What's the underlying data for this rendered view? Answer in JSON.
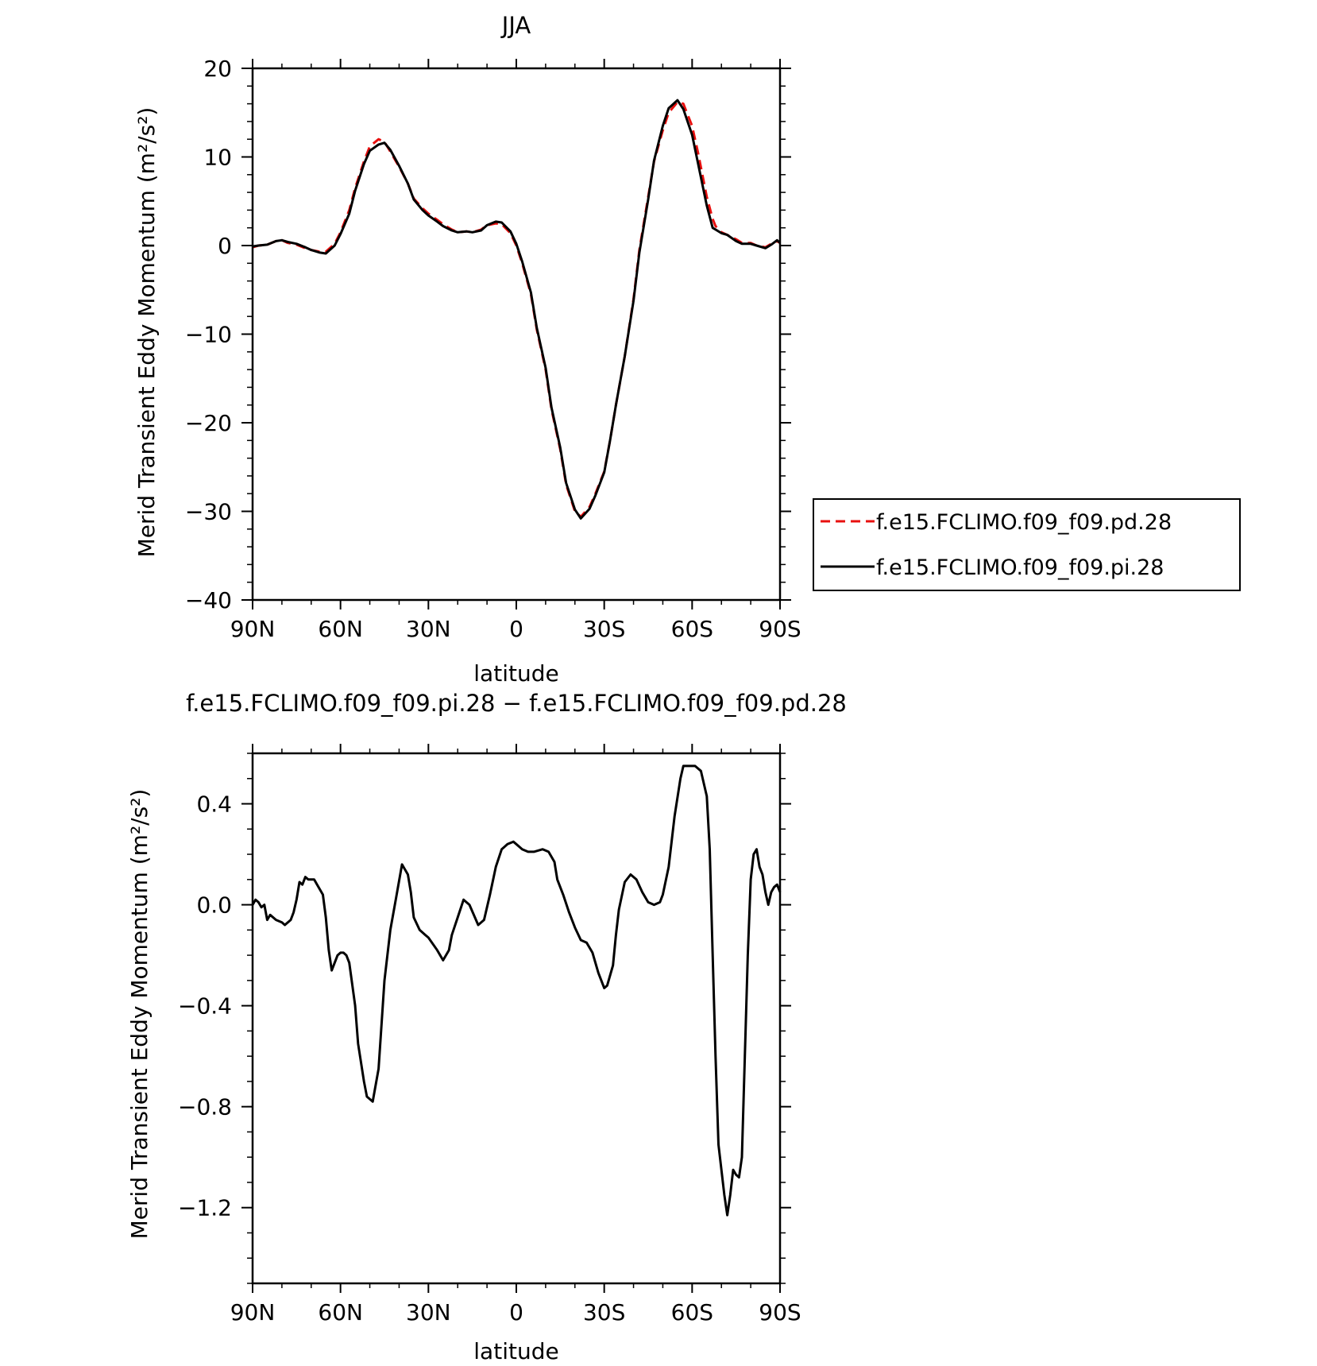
{
  "chart_data": [
    {
      "type": "line",
      "title": "JJA",
      "xlabel": "latitude",
      "ylabel": "Merid Transient Eddy Momentum (m²/s²)",
      "xlim": [
        90,
        -90
      ],
      "ylim": [
        -40,
        20
      ],
      "xticks": [
        90,
        60,
        30,
        0,
        -30,
        -60,
        -90
      ],
      "xtick_labels": [
        "90N",
        "60N",
        "30N",
        "0",
        "30S",
        "60S",
        "90S"
      ],
      "yticks": [
        20,
        10,
        0,
        -10,
        -20,
        -30,
        -40
      ],
      "ytick_labels": [
        "20",
        "10",
        "0",
        "−10",
        "−20",
        "−30",
        "−40"
      ],
      "legend_position": "right",
      "series": [
        {
          "name": "f.e15.FCLIMO.f09_f09.pd.28",
          "color": "#e8100f",
          "dash": "dashed",
          "x": [
            90,
            88,
            85,
            82,
            80,
            78,
            75,
            72,
            70,
            67,
            65,
            62,
            60,
            57,
            55,
            52,
            50,
            47,
            45,
            43,
            40,
            37,
            35,
            32,
            30,
            27,
            25,
            22,
            20,
            17,
            15,
            12,
            10,
            7,
            5,
            2,
            0,
            -2,
            -5,
            -7,
            -10,
            -12,
            -15,
            -17,
            -20,
            -22,
            -25,
            -27,
            -30,
            -32,
            -34,
            -37,
            -40,
            -42,
            -45,
            -47,
            -50,
            -52,
            -55,
            -57,
            -60,
            -62,
            -65,
            -67,
            -68,
            -70,
            -72,
            -75,
            -77,
            -80,
            -82,
            -85,
            -87,
            -89,
            -90
          ],
          "y": [
            -0.2,
            0,
            0.1,
            0.5,
            0.6,
            0.3,
            0.1,
            -0.3,
            -0.5,
            -0.7,
            -0.7,
            0.2,
            1.5,
            4,
            6.5,
            9.5,
            11.2,
            12,
            11.7,
            10.6,
            8.9,
            7,
            5.3,
            4.2,
            3.6,
            2.9,
            2.4,
            1.8,
            1.5,
            1.6,
            1.5,
            1.8,
            2.3,
            2.5,
            2.4,
            1.4,
            0,
            -2,
            -5.5,
            -9.5,
            -14,
            -18.5,
            -23,
            -27,
            -30,
            -30.6,
            -29.5,
            -28,
            -25.5,
            -22,
            -18,
            -12.5,
            -6,
            -0.5,
            5.5,
            9.5,
            13,
            15,
            16.2,
            16,
            13.5,
            10.5,
            5.5,
            3,
            2.2,
            1.5,
            1.2,
            0.7,
            0.3,
            0.3,
            0,
            -0.2,
            0.2,
            0.5,
            0.3
          ]
        },
        {
          "name": "f.e15.FCLIMO.f09_f09.pi.28",
          "color": "#000000",
          "dash": "solid",
          "x": [
            90,
            88,
            85,
            82,
            80,
            78,
            75,
            72,
            70,
            67,
            65,
            62,
            60,
            57,
            55,
            52,
            50,
            47,
            45,
            43,
            40,
            37,
            35,
            32,
            30,
            27,
            25,
            22,
            20,
            17,
            15,
            12,
            10,
            7,
            5,
            2,
            0,
            -2,
            -5,
            -7,
            -10,
            -12,
            -15,
            -17,
            -20,
            -22,
            -25,
            -27,
            -30,
            -32,
            -34,
            -37,
            -40,
            -42,
            -45,
            -47,
            -50,
            -52,
            -55,
            -57,
            -60,
            -62,
            -65,
            -67,
            -68,
            -70,
            -72,
            -75,
            -77,
            -80,
            -82,
            -85,
            -87,
            -89,
            -90
          ],
          "y": [
            -0.1,
            0,
            0.1,
            0.5,
            0.6,
            0.4,
            0.2,
            -0.2,
            -0.5,
            -0.8,
            -0.9,
            0,
            1.3,
            3.6,
            6.2,
            9.2,
            10.7,
            11.4,
            11.6,
            10.8,
            9,
            7,
            5.2,
            4,
            3.4,
            2.7,
            2.2,
            1.7,
            1.5,
            1.6,
            1.5,
            1.7,
            2.3,
            2.7,
            2.6,
            1.6,
            0.2,
            -1.8,
            -5.3,
            -9.3,
            -13.8,
            -18.3,
            -22.8,
            -26.8,
            -29.8,
            -30.8,
            -29.7,
            -28.2,
            -25.6,
            -22,
            -18,
            -12.5,
            -6.2,
            -0.8,
            5.2,
            9.6,
            13.5,
            15.5,
            16.4,
            15.4,
            12.5,
            9.3,
            4.5,
            2,
            1.8,
            1.4,
            1.2,
            0.5,
            0.2,
            0.2,
            0,
            -0.3,
            0.1,
            0.6,
            0.3
          ]
        }
      ]
    },
    {
      "type": "line",
      "title": "f.e15.FCLIMO.f09_f09.pi.28 − f.e15.FCLIMO.f09_f09.pd.28",
      "xlabel": "latitude",
      "ylabel": "Merid Transient Eddy Momentum (m²/s²)",
      "xlim": [
        90,
        -90
      ],
      "ylim": [
        -1.5,
        0.6
      ],
      "xticks": [
        90,
        60,
        30,
        0,
        -30,
        -60,
        -90
      ],
      "xtick_labels": [
        "90N",
        "60N",
        "30N",
        "0",
        "30S",
        "60S",
        "90S"
      ],
      "yticks": [
        0.4,
        0.0,
        -0.4,
        -0.8,
        -1.2
      ],
      "ytick_labels": [
        "0.4",
        "0.0",
        "−0.4",
        "−0.8",
        "−1.2"
      ],
      "series": [
        {
          "color": "#000000",
          "dash": "solid",
          "x": [
            90,
            89,
            88,
            87,
            86,
            85,
            84,
            82,
            80,
            79,
            77,
            76,
            75,
            74,
            73,
            72,
            71,
            69,
            68,
            66,
            65,
            64,
            63,
            61,
            60,
            59,
            58,
            57,
            55,
            54,
            52,
            51,
            49,
            47,
            45,
            43,
            41,
            39,
            37,
            36,
            35,
            33,
            31,
            30,
            27,
            25,
            23,
            22,
            20,
            18,
            16,
            13,
            11,
            9,
            7,
            5,
            3,
            1,
            0,
            -2,
            -4,
            -6,
            -9,
            -11,
            -13,
            -14,
            -16,
            -18,
            -20,
            -22,
            -24,
            -26,
            -28,
            -30,
            -31,
            -33,
            -34,
            -35,
            -37,
            -39,
            -41,
            -43,
            -45,
            -47,
            -49,
            -50,
            -52,
            -54,
            -56,
            -57,
            -59,
            -60,
            -61,
            -63,
            -65,
            -66,
            -67,
            -68,
            -69,
            -71,
            -72,
            -73,
            -74,
            -75,
            -76,
            -77,
            -78,
            -79,
            -80,
            -81,
            -82,
            -83,
            -84,
            -85,
            -86,
            -87,
            -88,
            -89,
            -90
          ],
          "y": [
            0,
            0.02,
            0.01,
            -0.01,
            0,
            -0.06,
            -0.04,
            -0.06,
            -0.07,
            -0.08,
            -0.06,
            -0.03,
            0.02,
            0.09,
            0.08,
            0.11,
            0.1,
            0.1,
            0.08,
            0.04,
            -0.05,
            -0.18,
            -0.26,
            -0.2,
            -0.19,
            -0.19,
            -0.2,
            -0.23,
            -0.4,
            -0.55,
            -0.7,
            -0.76,
            -0.78,
            -0.65,
            -0.3,
            -0.1,
            0.03,
            0.16,
            0.12,
            0.05,
            -0.05,
            -0.1,
            -0.12,
            -0.13,
            -0.18,
            -0.22,
            -0.18,
            -0.12,
            -0.05,
            0.02,
            0,
            -0.08,
            -0.06,
            0.04,
            0.15,
            0.22,
            0.24,
            0.25,
            0.24,
            0.22,
            0.21,
            0.21,
            0.22,
            0.21,
            0.17,
            0.1,
            0.04,
            -0.03,
            -0.09,
            -0.14,
            -0.15,
            -0.19,
            -0.27,
            -0.33,
            -0.32,
            -0.24,
            -0.12,
            -0.02,
            0.09,
            0.12,
            0.1,
            0.05,
            0.01,
            0,
            0.01,
            0.04,
            0.15,
            0.35,
            0.5,
            0.55,
            0.55,
            0.55,
            0.55,
            0.53,
            0.43,
            0.22,
            -0.2,
            -0.6,
            -0.95,
            -1.15,
            -1.23,
            -1.15,
            -1.05,
            -1.07,
            -1.08,
            -1,
            -0.6,
            -0.2,
            0.1,
            0.2,
            0.22,
            0.15,
            0.12,
            0.05,
            0,
            0.05,
            0.07,
            0.08,
            0.05
          ]
        }
      ]
    }
  ]
}
